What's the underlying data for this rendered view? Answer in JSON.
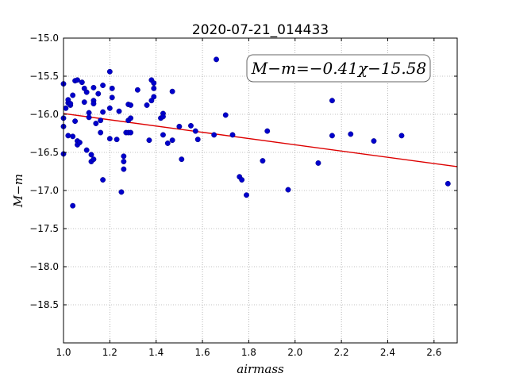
{
  "chart_data": {
    "type": "scatter",
    "title": "2020-07-21_014433",
    "xlabel": "airmass",
    "ylabel": "M−m",
    "xlim": [
      1.0,
      2.7
    ],
    "ylim": [
      -15.0,
      -19.0
    ],
    "y_inverted": true,
    "grid": true,
    "xticks": [
      1.0,
      1.2,
      1.4,
      1.6,
      1.8,
      2.0,
      2.2,
      2.4,
      2.6
    ],
    "xtick_labels": [
      "1.0",
      "1.2",
      "1.4",
      "1.6",
      "1.8",
      "2.0",
      "2.2",
      "2.4",
      "2.6"
    ],
    "yticks": [
      -15.0,
      -15.5,
      -16.0,
      -16.5,
      -17.0,
      -17.5,
      -18.0,
      -18.5
    ],
    "ytick_labels": [
      "−15.0",
      "−15.5",
      "−16.0",
      "−16.5",
      "−17.0",
      "−17.5",
      "−18.0",
      "−18.5"
    ],
    "annotation": "M−m=−0.41χ−15.58",
    "colors": {
      "points": "#0000cc",
      "fit": "#dd0000",
      "grid": "#888888"
    },
    "fit": {
      "slope": -0.41,
      "intercept": -15.58
    },
    "points": [
      [
        1.0,
        -15.6
      ],
      [
        1.0,
        -16.05
      ],
      [
        1.0,
        -16.16
      ],
      [
        1.0,
        -16.52
      ],
      [
        1.01,
        -15.92
      ],
      [
        1.02,
        -15.85
      ],
      [
        1.02,
        -15.81
      ],
      [
        1.02,
        -16.28
      ],
      [
        1.03,
        -15.88
      ],
      [
        1.03,
        -15.86
      ],
      [
        1.04,
        -15.75
      ],
      [
        1.04,
        -16.29
      ],
      [
        1.04,
        -17.2
      ],
      [
        1.05,
        -15.56
      ],
      [
        1.05,
        -16.09
      ],
      [
        1.06,
        -15.55
      ],
      [
        1.06,
        -16.35
      ],
      [
        1.06,
        -16.4
      ],
      [
        1.07,
        -16.37
      ],
      [
        1.08,
        -15.58
      ],
      [
        1.09,
        -15.66
      ],
      [
        1.09,
        -15.84
      ],
      [
        1.1,
        -15.71
      ],
      [
        1.1,
        -16.47
      ],
      [
        1.11,
        -15.98
      ],
      [
        1.11,
        -16.04
      ],
      [
        1.12,
        -16.62
      ],
      [
        1.12,
        -16.53
      ],
      [
        1.13,
        -15.65
      ],
      [
        1.13,
        -15.82
      ],
      [
        1.13,
        -15.86
      ],
      [
        1.13,
        -16.59
      ],
      [
        1.14,
        -16.12
      ],
      [
        1.15,
        -15.73
      ],
      [
        1.16,
        -16.08
      ],
      [
        1.16,
        -16.24
      ],
      [
        1.17,
        -15.97
      ],
      [
        1.17,
        -16.86
      ],
      [
        1.17,
        -15.62
      ],
      [
        1.2,
        -15.44
      ],
      [
        1.2,
        -15.92
      ],
      [
        1.2,
        -16.32
      ],
      [
        1.21,
        -15.66
      ],
      [
        1.21,
        -15.78
      ],
      [
        1.23,
        -16.33
      ],
      [
        1.24,
        -15.96
      ],
      [
        1.25,
        -17.02
      ],
      [
        1.26,
        -16.72
      ],
      [
        1.26,
        -16.62
      ],
      [
        1.26,
        -16.55
      ],
      [
        1.27,
        -16.24
      ],
      [
        1.28,
        -16.24
      ],
      [
        1.28,
        -15.87
      ],
      [
        1.28,
        -16.08
      ],
      [
        1.29,
        -16.05
      ],
      [
        1.29,
        -15.88
      ],
      [
        1.29,
        -16.24
      ],
      [
        1.32,
        -15.68
      ],
      [
        1.36,
        -15.88
      ],
      [
        1.37,
        -16.34
      ],
      [
        1.38,
        -15.55
      ],
      [
        1.38,
        -15.82
      ],
      [
        1.39,
        -15.59
      ],
      [
        1.39,
        -15.66
      ],
      [
        1.39,
        -15.77
      ],
      [
        1.42,
        -16.05
      ],
      [
        1.43,
        -16.27
      ],
      [
        1.43,
        -15.99
      ],
      [
        1.43,
        -16.03
      ],
      [
        1.45,
        -16.38
      ],
      [
        1.47,
        -15.7
      ],
      [
        1.47,
        -16.34
      ],
      [
        1.5,
        -16.16
      ],
      [
        1.51,
        -16.59
      ],
      [
        1.55,
        -16.15
      ],
      [
        1.57,
        -16.22
      ],
      [
        1.58,
        -16.33
      ],
      [
        1.65,
        -16.27
      ],
      [
        1.66,
        -15.28
      ],
      [
        1.7,
        -16.01
      ],
      [
        1.73,
        -16.27
      ],
      [
        1.76,
        -16.82
      ],
      [
        1.77,
        -16.86
      ],
      [
        1.79,
        -17.06
      ],
      [
        1.86,
        -16.61
      ],
      [
        1.88,
        -16.22
      ],
      [
        1.97,
        -16.99
      ],
      [
        2.1,
        -16.64
      ],
      [
        2.16,
        -15.82
      ],
      [
        2.16,
        -16.28
      ],
      [
        2.24,
        -16.26
      ],
      [
        2.34,
        -16.35
      ],
      [
        2.46,
        -16.28
      ],
      [
        2.66,
        -16.91
      ]
    ]
  }
}
